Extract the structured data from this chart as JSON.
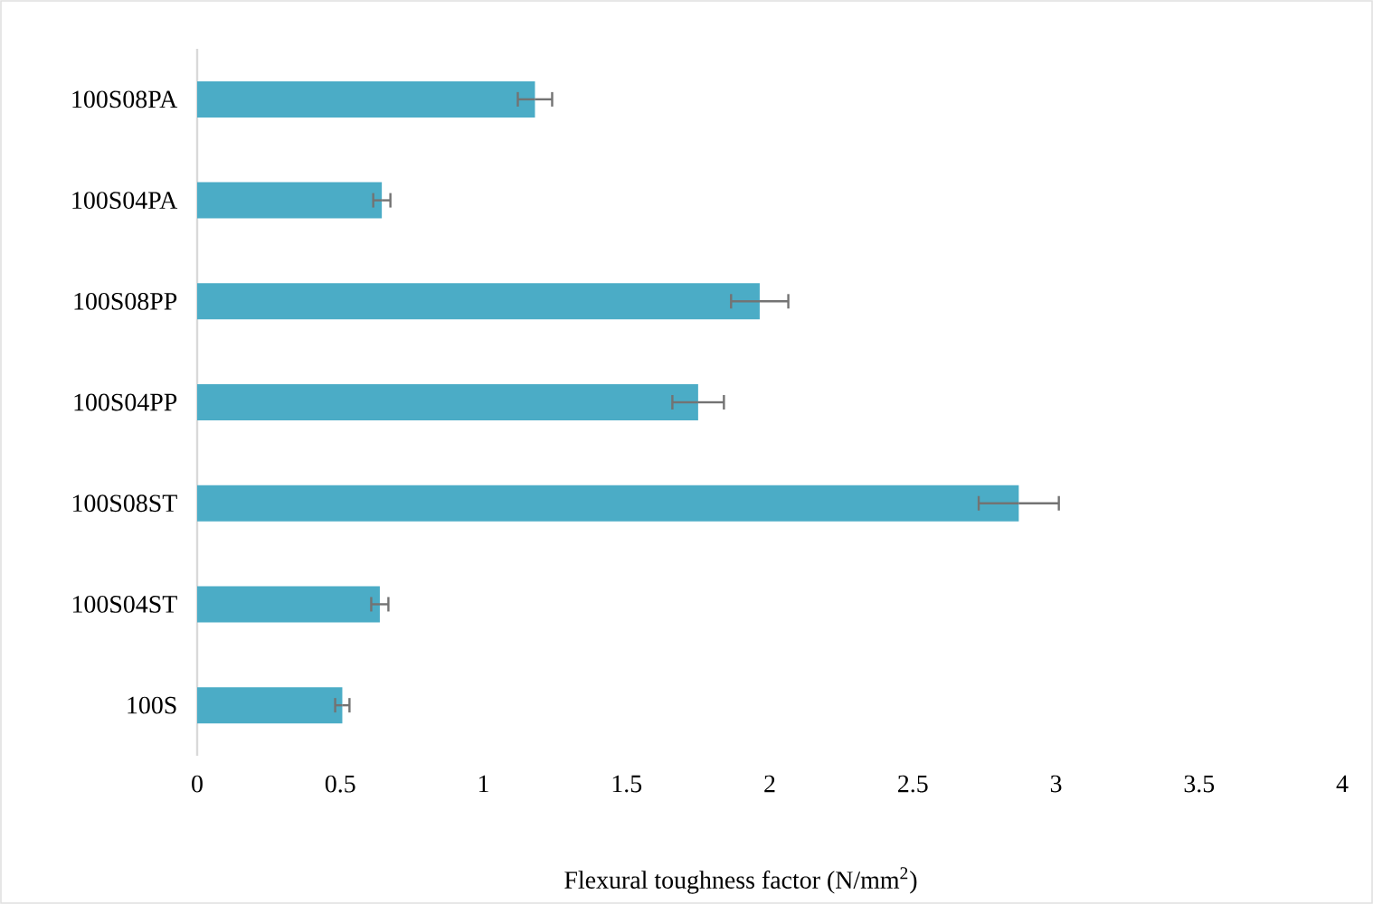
{
  "chart_data": {
    "type": "bar",
    "orientation": "horizontal",
    "xlabel": "Flexural toughness factor (N/mm$^{2}$)",
    "categories": [
      "100S08PA",
      "100S04PA",
      "100S08PP",
      "100S04PP",
      "100S08ST",
      "100S04ST",
      "100S"
    ],
    "values": [
      1.18,
      0.645,
      1.965,
      1.75,
      2.87,
      0.638,
      0.507
    ],
    "errors": [
      0.06,
      0.03,
      0.1,
      0.09,
      0.14,
      0.03,
      0.025
    ],
    "color": "#4bacc6",
    "xlim": [
      0,
      4
    ],
    "xticks": [
      0,
      0.5,
      1,
      1.5,
      2,
      2.5,
      3,
      3.5,
      4
    ]
  }
}
